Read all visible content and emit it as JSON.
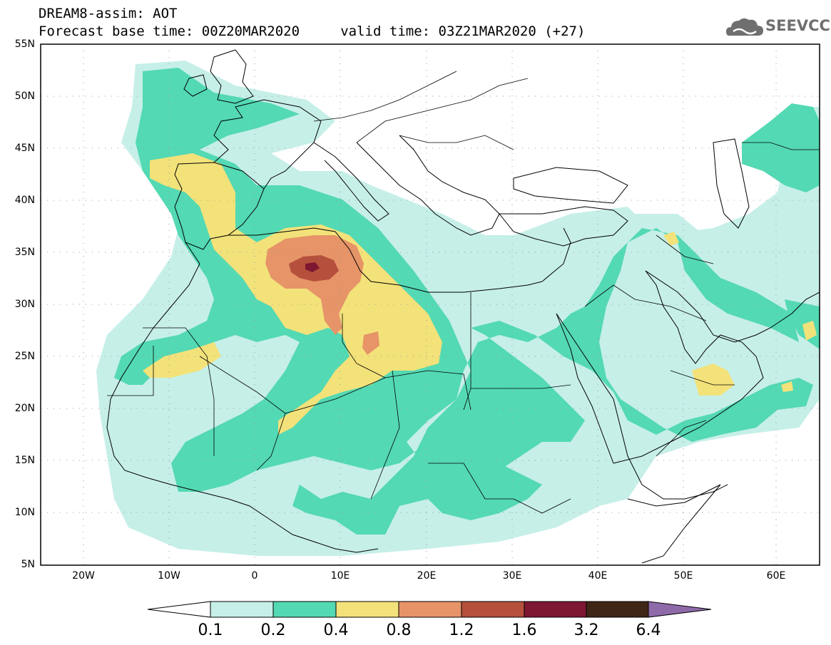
{
  "header": {
    "line1": "DREAM8-assim: AOT",
    "line2": "Forecast base time: 00Z20MAR2020     valid time: 03Z21MAR2020 (+27)"
  },
  "logo": {
    "text": "SEEVCCC",
    "icon": "cloud-icon"
  },
  "map": {
    "lat_labels": [
      "55N",
      "50N",
      "45N",
      "40N",
      "35N",
      "30N",
      "25N",
      "20N",
      "15N",
      "10N",
      "5N"
    ],
    "lon_labels": [
      "20W",
      "10W",
      "0",
      "10E",
      "20E",
      "30E",
      "40E",
      "50E",
      "60E"
    ]
  },
  "colorbar": {
    "labels": [
      "0.1",
      "0.2",
      "0.4",
      "0.8",
      "1.2",
      "1.6",
      "3.2",
      "6.4"
    ],
    "colors": [
      "#ffffff",
      "#c6efe8",
      "#53d9b3",
      "#f3e27a",
      "#e69468",
      "#b5503c",
      "#7d1732",
      "#3f2616",
      "#8e6aa8"
    ]
  },
  "palette": {
    "land_line": "#000000",
    "grid": "#9a9a9a",
    "frame": "#000000"
  }
}
